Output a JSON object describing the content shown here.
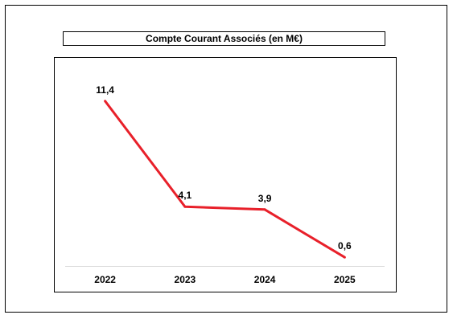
{
  "chart_data": {
    "type": "line",
    "title": "Compte Courant Associés (en M€)",
    "categories": [
      "2022",
      "2023",
      "2024",
      "2025"
    ],
    "series": [
      {
        "values": [
          11.4,
          4.1,
          3.9,
          0.6
        ],
        "data_labels": [
          "11,4",
          "4,1",
          "3,9",
          "0,6"
        ],
        "color": "#e8202a"
      }
    ],
    "ylim": [
      0,
      13
    ],
    "grid": false,
    "legend": "none"
  }
}
